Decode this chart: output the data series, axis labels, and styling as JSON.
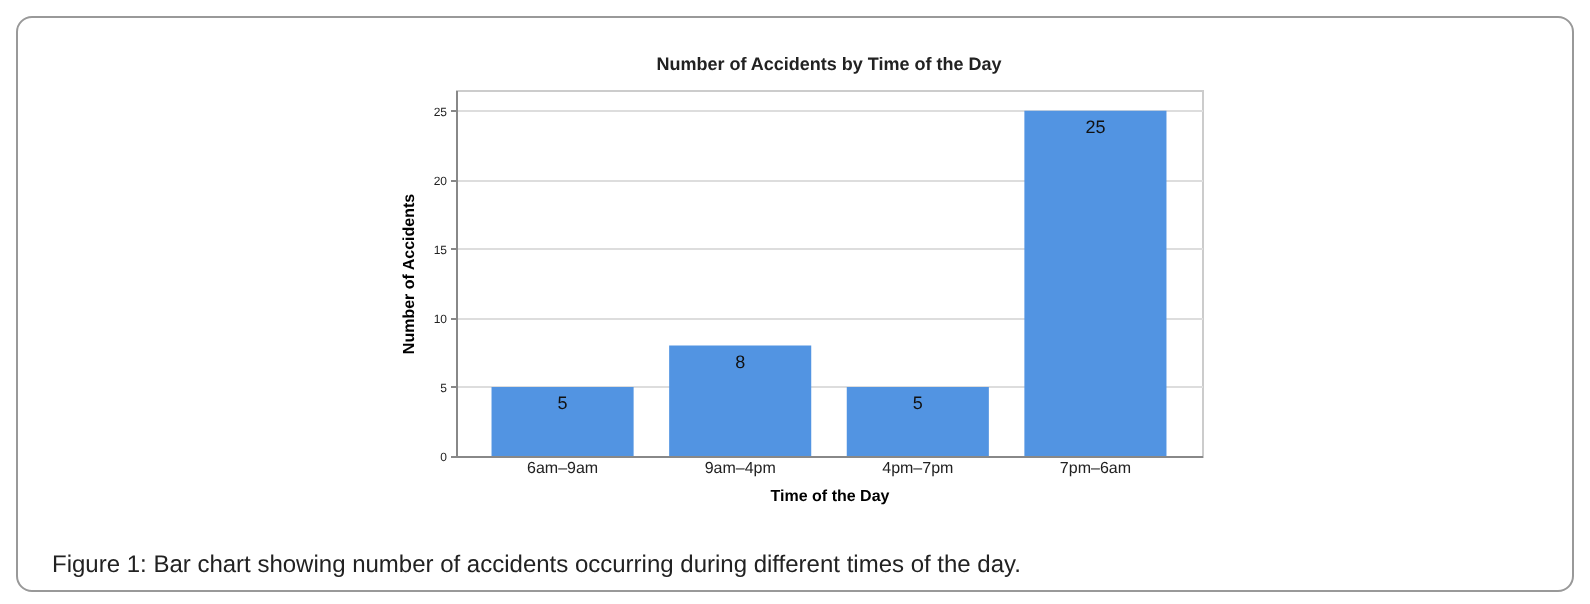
{
  "chart_data": {
    "type": "bar",
    "title": "Number of Accidents by Time of the Day",
    "xlabel": "Time of the Day",
    "ylabel": "Number of Accidents",
    "categories": [
      "6am–9am",
      "9am–4pm",
      "4pm–7pm",
      "7pm–6am"
    ],
    "values": [
      5,
      8,
      5,
      25
    ],
    "color": "#5294e2",
    "ylim": [
      0,
      26.5
    ],
    "yticks": [
      0,
      5,
      10,
      15,
      20,
      25
    ],
    "grid": "y",
    "data_labels": true,
    "annotations": [
      "Figure 1: Bar chart showing number of accidents occurring during different times of the day."
    ]
  }
}
